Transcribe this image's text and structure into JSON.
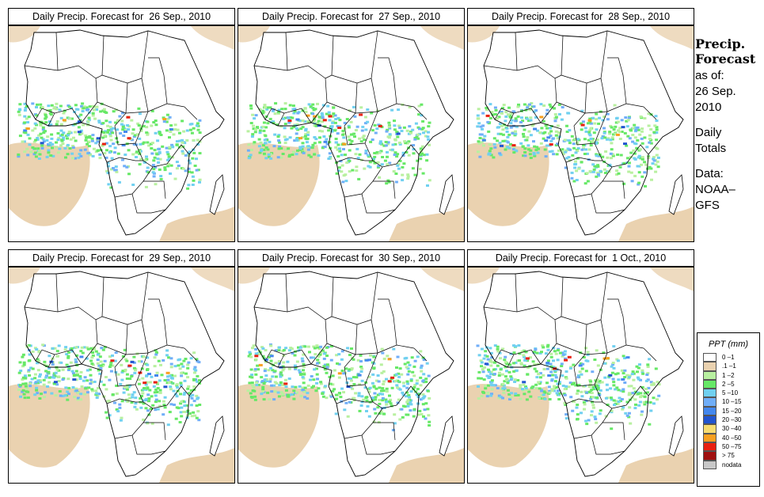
{
  "panels": [
    {
      "title": "Daily Precip. Forecast for  26 Sep., 2010"
    },
    {
      "title": "Daily Precip. Forecast for  27 Sep., 2010"
    },
    {
      "title": "Daily Precip. Forecast for  28 Sep., 2010"
    },
    {
      "title": "Daily Precip. Forecast for  29 Sep., 2010"
    },
    {
      "title": "Daily Precip. Forecast for  30 Sep., 2010"
    },
    {
      "title": "Daily Precip. Forecast for  1 Oct., 2010"
    }
  ],
  "sidebar": {
    "heading_line1": "Precip.",
    "heading_line2": "Forecast",
    "asof_line1": "as of:",
    "asof_line2": "26 Sep.",
    "asof_line3": "2010",
    "type_line1": "Daily",
    "type_line2": "Totals",
    "source_line1": "Data:",
    "source_line2": "NOAA–",
    "source_line3": "GFS"
  },
  "legend": {
    "title": "PPT (mm)",
    "items": [
      {
        "label": "0 –1",
        "color": "#ffffff"
      },
      {
        "label": ".1 –1",
        "color": "#ead2b0"
      },
      {
        "label": "1 –2",
        "color": "#b8f0a0"
      },
      {
        "label": "2 –5",
        "color": "#66e866"
      },
      {
        "label": "5 –10",
        "color": "#70d0f0"
      },
      {
        "label": "10 –15",
        "color": "#70aef8"
      },
      {
        "label": "15 –20",
        "color": "#4488ee"
      },
      {
        "label": "20 –30",
        "color": "#2255d0"
      },
      {
        "label": "30 –40",
        "color": "#f8dc70"
      },
      {
        "label": "40 –50",
        "color": "#f8a020"
      },
      {
        "label": "50 –75",
        "color": "#e82010"
      },
      {
        "label": "> 75",
        "color": "#a01010"
      },
      {
        "label": "nodata",
        "color": "#c8c8c8"
      }
    ]
  }
}
